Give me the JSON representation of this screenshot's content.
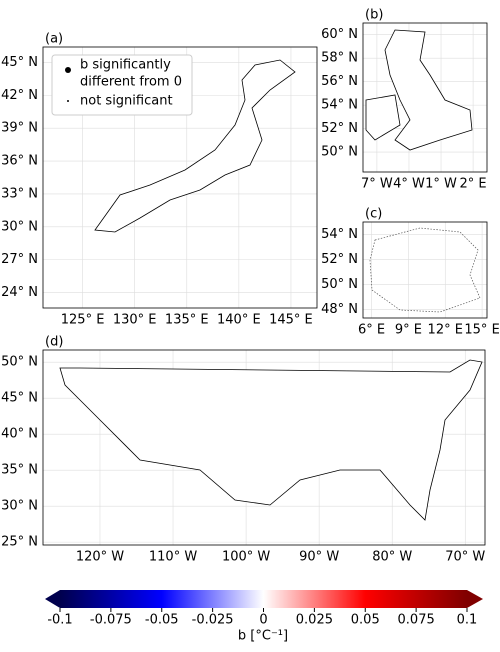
{
  "panels": [
    {
      "label": "(a)",
      "xlim": [
        121.2,
        147.5
      ],
      "ylim": [
        22.6,
        46.4
      ],
      "xticks": [
        {
          "value": 125,
          "label": "125° E"
        },
        {
          "value": 130,
          "label": "130° E"
        },
        {
          "value": 135,
          "label": "135° E"
        },
        {
          "value": 140,
          "label": "140° E"
        },
        {
          "value": 145,
          "label": "145° E"
        }
      ],
      "yticks": [
        {
          "value": 24,
          "label": "24° N"
        },
        {
          "value": 27,
          "label": "27° N"
        },
        {
          "value": 30,
          "label": "30° N"
        },
        {
          "value": 33,
          "label": "33° N"
        },
        {
          "value": 36,
          "label": "36° N"
        },
        {
          "value": 39,
          "label": "39° N"
        },
        {
          "value": 42,
          "label": "42° N"
        },
        {
          "value": 45,
          "label": "45° N"
        }
      ]
    },
    {
      "label": "(b)",
      "xlim": [
        -8.3,
        3.3
      ],
      "ylim": [
        48.3,
        61.0
      ],
      "xticks": [
        {
          "value": -7,
          "label": "7° W"
        },
        {
          "value": -4,
          "label": "4° W"
        },
        {
          "value": -1,
          "label": "1° W"
        },
        {
          "value": 2,
          "label": "2° E"
        }
      ],
      "yticks": [
        {
          "value": 50,
          "label": "50° N"
        },
        {
          "value": 52,
          "label": "52° N"
        },
        {
          "value": 54,
          "label": "54° N"
        },
        {
          "value": 56,
          "label": "56° N"
        },
        {
          "value": 58,
          "label": "58° N"
        },
        {
          "value": 60,
          "label": "60° N"
        }
      ]
    },
    {
      "label": "(c)",
      "xlim": [
        5.3,
        15.4
      ],
      "ylim": [
        47.3,
        55.0
      ],
      "xticks": [
        {
          "value": 6,
          "label": "6° E"
        },
        {
          "value": 9,
          "label": "9° E"
        },
        {
          "value": 12,
          "label": "12° E"
        },
        {
          "value": 15,
          "label": "15° E"
        }
      ],
      "yticks": [
        {
          "value": 48,
          "label": "48° N"
        },
        {
          "value": 50,
          "label": "50° N"
        },
        {
          "value": 52,
          "label": "52° N"
        },
        {
          "value": 54,
          "label": "54° N"
        }
      ]
    },
    {
      "label": "(d)",
      "xlim": [
        -127.8,
        -67.3
      ],
      "ylim": [
        24.6,
        51.7
      ],
      "xticks": [
        {
          "value": -120,
          "label": "120° W"
        },
        {
          "value": -110,
          "label": "110° W"
        },
        {
          "value": -100,
          "label": "100° W"
        },
        {
          "value": -90,
          "label": "90° W"
        },
        {
          "value": -80,
          "label": "80° W"
        },
        {
          "value": -70,
          "label": "70° W"
        }
      ],
      "yticks": [
        {
          "value": 25,
          "label": "25° N"
        },
        {
          "value": 30,
          "label": "30° N"
        },
        {
          "value": 35,
          "label": "35° N"
        },
        {
          "value": 40,
          "label": "40° N"
        },
        {
          "value": 45,
          "label": "45° N"
        },
        {
          "value": 50,
          "label": "50° N"
        }
      ]
    }
  ],
  "legend": {
    "significant": [
      "b significantly",
      "different from 0"
    ],
    "not_significant": "not significant"
  },
  "colorbar": {
    "lim": [
      -0.1,
      0.1
    ],
    "ticks": [
      -0.1,
      -0.075,
      -0.05,
      -0.025,
      0,
      0.025,
      0.05,
      0.075,
      0.1
    ],
    "label": "b [°C⁻¹]"
  }
}
